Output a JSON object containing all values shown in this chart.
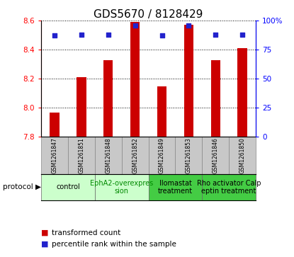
{
  "title": "GDS5670 / 8128429",
  "samples": [
    "GSM1261847",
    "GSM1261851",
    "GSM1261848",
    "GSM1261852",
    "GSM1261849",
    "GSM1261853",
    "GSM1261846",
    "GSM1261850"
  ],
  "transformed_counts": [
    7.97,
    8.21,
    8.33,
    8.59,
    8.15,
    8.57,
    8.33,
    8.41
  ],
  "percentile_ranks": [
    87,
    88,
    88,
    96,
    87,
    96,
    88,
    88
  ],
  "ylim_left": [
    7.8,
    8.6
  ],
  "ylim_right": [
    0,
    100
  ],
  "yticks_left": [
    7.8,
    8.0,
    8.2,
    8.4,
    8.6
  ],
  "yticks_right": [
    0,
    25,
    50,
    75,
    100
  ],
  "bar_color": "#cc0000",
  "dot_color": "#2222cc",
  "bar_bottom": 7.8,
  "protocols": [
    {
      "label": "control",
      "samples": [
        0,
        1
      ],
      "color": "#ccffcc",
      "text_color": "#000000"
    },
    {
      "label": "EphA2-overexpres\nsion",
      "samples": [
        2,
        3
      ],
      "color": "#ccffcc",
      "text_color": "#008800"
    },
    {
      "label": "Ilomastat\ntreatment",
      "samples": [
        4,
        5
      ],
      "color": "#44cc44",
      "text_color": "#000000"
    },
    {
      "label": "Rho activator Calp\neptin treatment",
      "samples": [
        6,
        7
      ],
      "color": "#44cc44",
      "text_color": "#000000"
    }
  ],
  "sample_bg_color": "#c8c8c8",
  "bar_width": 0.35,
  "dot_size": 20,
  "title_fontsize": 11,
  "tick_fontsize": 7.5,
  "sample_fontsize": 5.5,
  "proto_fontsize": 7,
  "legend_fontsize": 7.5
}
